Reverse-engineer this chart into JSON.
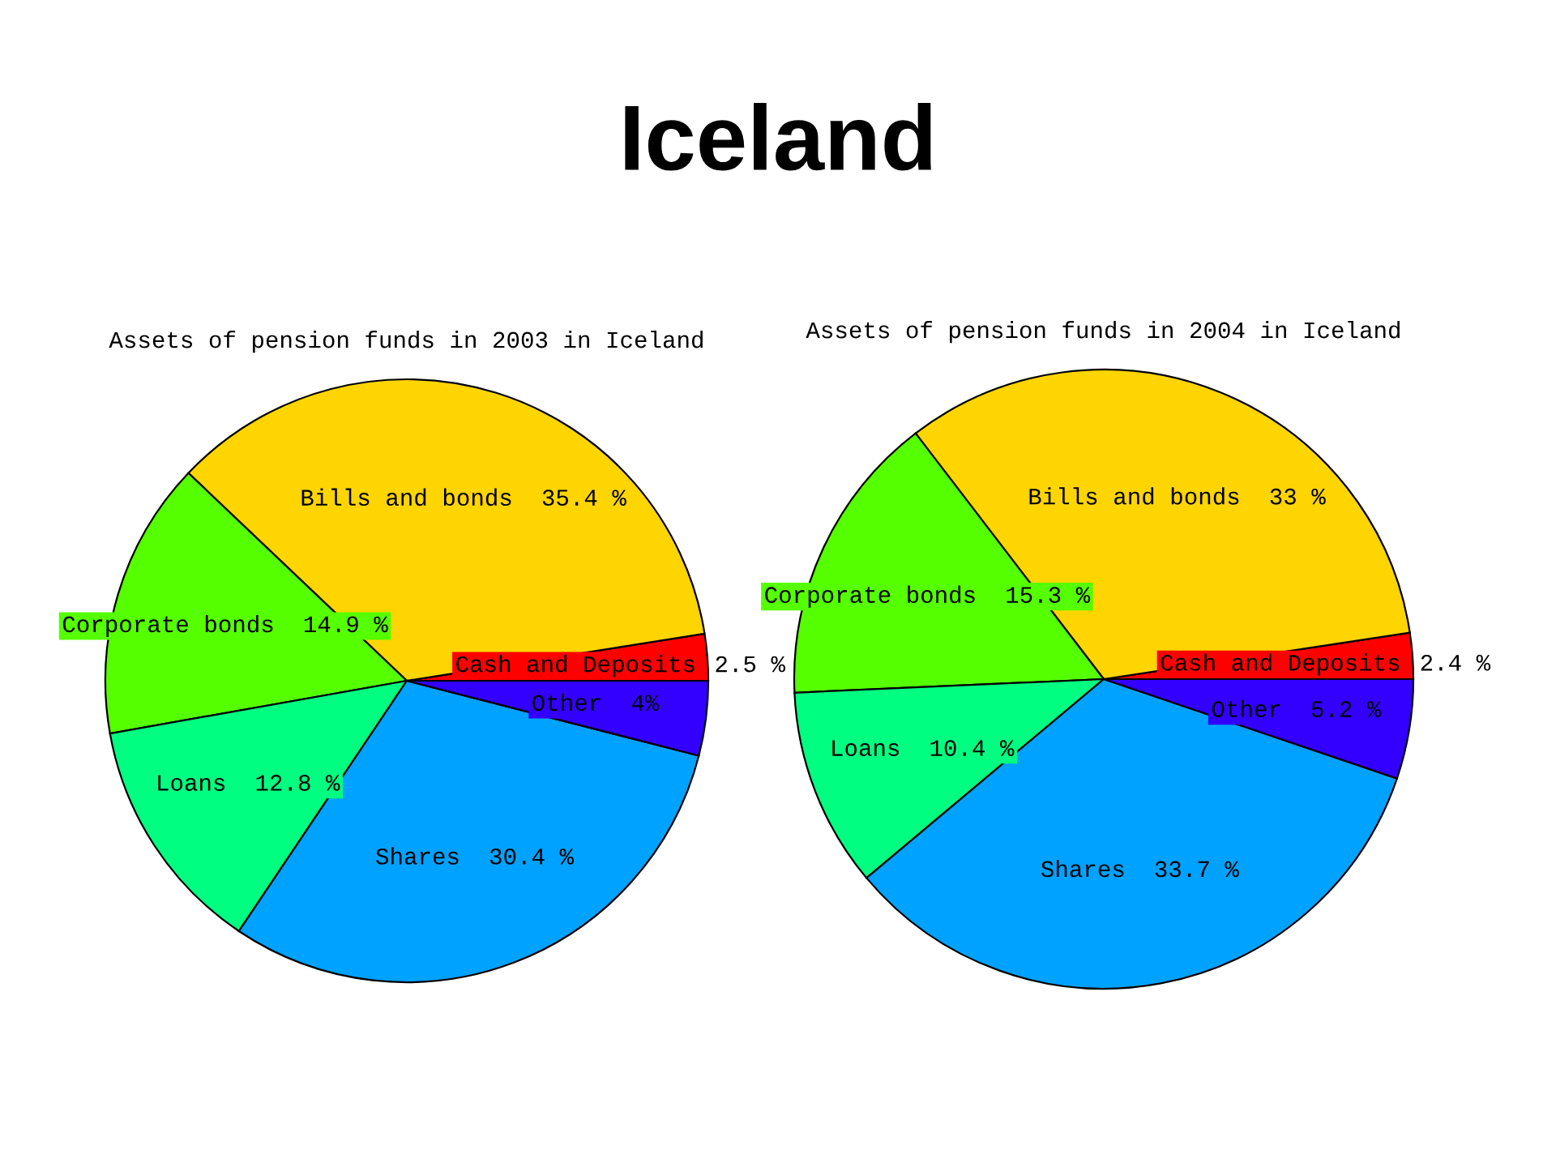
{
  "chart_data": [
    {
      "type": "other",
      "title": "Iceland"
    },
    {
      "type": "pie",
      "title": "Assets of pension funds in 2003 in Iceland",
      "categories": [
        "Cash and Deposits",
        "Bills and bonds",
        "Corporate bonds",
        "Loans",
        "Shares",
        "Other"
      ],
      "values": [
        2.5,
        35.4,
        14.9,
        12.8,
        30.4,
        4
      ],
      "value_labels": [
        "2.5 %",
        "35.4 %",
        "14.9 %",
        "12.8 %",
        "30.4 %",
        "4%"
      ],
      "colors": [
        "#ff0000",
        "#ffd500",
        "#55ff00",
        "#00ff80",
        "#00a2ff",
        "#3300ff"
      ]
    },
    {
      "type": "pie",
      "title": "Assets of pension funds in 2004 in Iceland",
      "categories": [
        "Cash and Deposits",
        "Bills and bonds",
        "Corporate bonds",
        "Loans",
        "Shares",
        "Other"
      ],
      "values": [
        2.4,
        33,
        15.3,
        10.4,
        33.7,
        5.2
      ],
      "value_labels": [
        "2.4 %",
        "33 %",
        "15.3 %",
        "10.4 %",
        "33.7 %",
        "5.2 %"
      ],
      "colors": [
        "#ff0000",
        "#ffd500",
        "#55ff00",
        "#00ff80",
        "#00a2ff",
        "#3300ff"
      ]
    }
  ]
}
